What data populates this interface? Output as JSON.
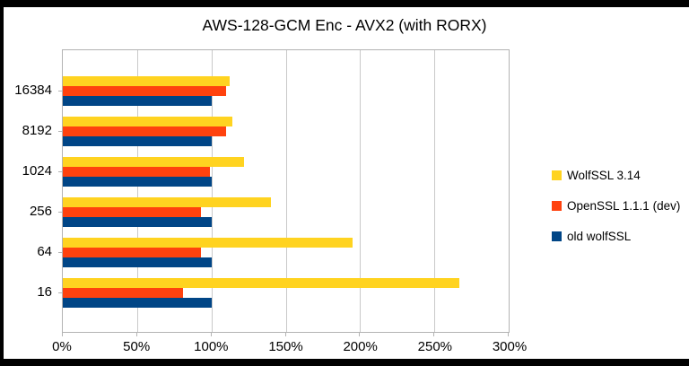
{
  "window": {
    "frame_color": "#000000",
    "background": "#ffffff"
  },
  "chart_data": {
    "type": "bar",
    "orientation": "horizontal",
    "title": "AWS-128-GCM Enc - AVX2 (with RORX)",
    "categories": [
      "16384",
      "8192",
      "1024",
      "256",
      "64",
      "16"
    ],
    "series": [
      {
        "name": "WolfSSL 3.14",
        "color": "#FFD320",
        "values": [
          112,
          114,
          122,
          140,
          195,
          267
        ]
      },
      {
        "name": "OpenSSL 1.1.1 (dev)",
        "color": "#FF420E",
        "values": [
          110,
          110,
          99,
          93,
          93,
          81
        ]
      },
      {
        "name": "old wolfSSL",
        "color": "#004586",
        "values": [
          100,
          100,
          100,
          100,
          100,
          100
        ]
      }
    ],
    "x_tick_labels": [
      "0%",
      "50%",
      "100%",
      "150%",
      "200%",
      "250%",
      "300%"
    ],
    "x_tick_values": [
      0,
      50,
      100,
      150,
      200,
      250,
      300
    ],
    "xlim": [
      0,
      300
    ],
    "grid": "vertical-only",
    "legend_position": "right",
    "colors": {
      "plot_border": "#b3b3b3",
      "gridline": "#c9c9c9",
      "text": "#000000"
    }
  }
}
